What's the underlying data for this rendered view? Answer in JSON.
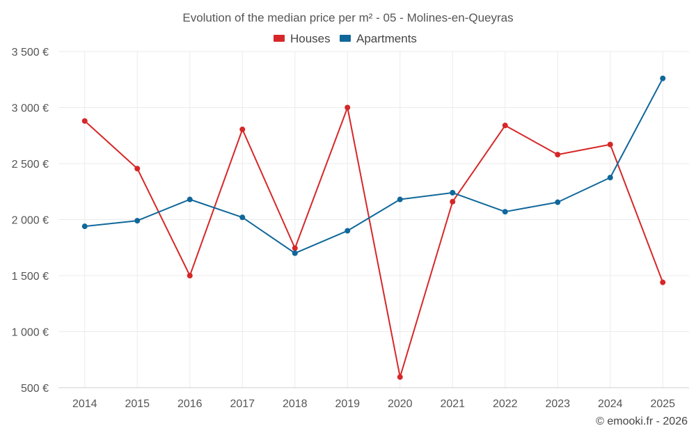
{
  "chart_data": {
    "type": "line",
    "title": "Evolution of the median price per m² - 05 - Molines-en-Queyras",
    "categories": [
      "2014",
      "2015",
      "2016",
      "2017",
      "2018",
      "2019",
      "2020",
      "2021",
      "2022",
      "2023",
      "2024",
      "2025"
    ],
    "series": [
      {
        "name": "Houses",
        "color": "#d62728",
        "values": [
          2880,
          2455,
          1500,
          2805,
          1745,
          3000,
          595,
          2160,
          2840,
          2580,
          2670,
          1440
        ]
      },
      {
        "name": "Apartments",
        "color": "#10679a",
        "values": [
          1940,
          1990,
          2180,
          2020,
          1700,
          1900,
          2180,
          2240,
          2070,
          2155,
          2375,
          3260
        ]
      }
    ],
    "y_ticks": [
      500,
      1000,
      1500,
      2000,
      2500,
      3000,
      3500
    ],
    "y_tick_labels": [
      "500 €",
      "1 000 €",
      "1 500 €",
      "2 000 €",
      "2 500 €",
      "3 000 €",
      "3 500 €"
    ],
    "ylim": [
      500,
      3500
    ],
    "xlabel": "",
    "ylabel": "",
    "grid": true,
    "legend_position": "top-center"
  },
  "credit": "© emooki.fr - 2026"
}
